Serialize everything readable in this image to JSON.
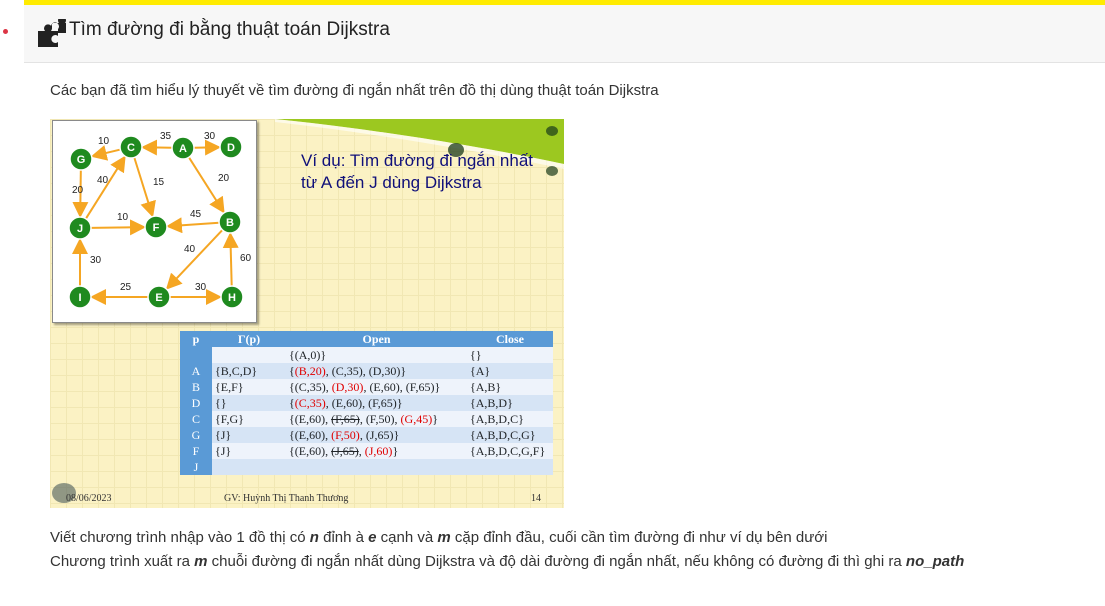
{
  "header": {
    "title": "Tìm đường đi bằng thuật toán Dijkstra",
    "icon": "puzzle-icon"
  },
  "intro": "Các bạn đã tìm hiểu lý thuyết về tìm đường đi ngắn nhất trên đồ thị dùng thuật toán Dijkstra",
  "slide": {
    "title_line1": "Ví dụ: Tìm đường đi ngắn nhất",
    "title_line2": "từ A đến J dùng Dijkstra",
    "graph": {
      "nodes": [
        "G",
        "C",
        "A",
        "D",
        "J",
        "F",
        "B",
        "I",
        "E",
        "H"
      ],
      "weights": {
        "CG": "10",
        "AC": "35",
        "AD": "30",
        "GJ": "20",
        "JC": "40",
        "CF": "15",
        "AB": "20",
        "JF": "10",
        "BF": "45",
        "BE": "40",
        "HB": "60",
        "IJ": "30",
        "EI": "25",
        "EH": "30"
      }
    },
    "table": {
      "headers": [
        "p",
        "Γ(p)",
        "Open",
        "Close"
      ],
      "rows": [
        {
          "p": "",
          "gamma": "",
          "close": "{}",
          "open": [
            {
              "t": "{(A,0)}"
            }
          ]
        },
        {
          "p": "A",
          "gamma": "{B,C,D}",
          "close": "{A}",
          "open": [
            {
              "t": "{"
            },
            {
              "t": "(B,20)",
              "hl": true
            },
            {
              "t": ", (C,35), (D,30)}"
            }
          ]
        },
        {
          "p": "B",
          "gamma": "{E,F}",
          "close": "{A,B}",
          "open": [
            {
              "t": "{(C,35), "
            },
            {
              "t": "(D,30)",
              "hl": true
            },
            {
              "t": ", (E,60), (F,65)}"
            }
          ]
        },
        {
          "p": "D",
          "gamma": "{}",
          "close": "{A,B,D}",
          "open": [
            {
              "t": "{"
            },
            {
              "t": "(C,35)",
              "hl": true
            },
            {
              "t": ", (E,60), (F,65)}"
            }
          ]
        },
        {
          "p": "C",
          "gamma": "{F,G}",
          "close": "{A,B,D,C}",
          "open": [
            {
              "t": "{(E,60), "
            },
            {
              "t": "(F,65)",
              "st": true
            },
            {
              "t": ", (F,50), "
            },
            {
              "t": "(G,45)",
              "hl": true
            },
            {
              "t": "}"
            }
          ]
        },
        {
          "p": "G",
          "gamma": "{J}",
          "close": "{A,B,D,C,G}",
          "open": [
            {
              "t": "{(E,60), "
            },
            {
              "t": "(F,50)",
              "hl": true
            },
            {
              "t": ", (J,65)}"
            }
          ]
        },
        {
          "p": "F",
          "gamma": "{J}",
          "close": "{A,B,D,C,G,F}",
          "open": [
            {
              "t": "{(E,60),  "
            },
            {
              "t": "(J,65)",
              "st": true
            },
            {
              "t": ", "
            },
            {
              "t": "(J,60)",
              "hl": true
            },
            {
              "t": "}"
            }
          ]
        },
        {
          "p": "J",
          "gamma": "",
          "close": "",
          "open": []
        }
      ]
    },
    "footer_date": "08/06/2023",
    "footer_author": "GV: Huỳnh Thị Thanh Thương",
    "footer_page": "14"
  },
  "para1": {
    "a": "Viết chương trình nhập vào 1 đồ thị có ",
    "n": "n",
    "b": " đỉnh à ",
    "e": "e",
    "c": " cạnh và ",
    "m": "m",
    "d": " cặp đỉnh đầu, cuối cần tìm đường đi như ví dụ bên dưới"
  },
  "para2": {
    "a": "Chương trình xuất ra ",
    "m": "m",
    "b": " chuỗi đường đi ngắn nhất dùng Dijkstra và độ dài đường đi ngắn nhất, nếu không có đường đi thì ghi ra ",
    "np": "no_path"
  },
  "colors": {
    "accent": "#ffeb00",
    "node": "#1f8a1f",
    "edge": "#f5a623",
    "table_head": "#5a9ad6"
  }
}
